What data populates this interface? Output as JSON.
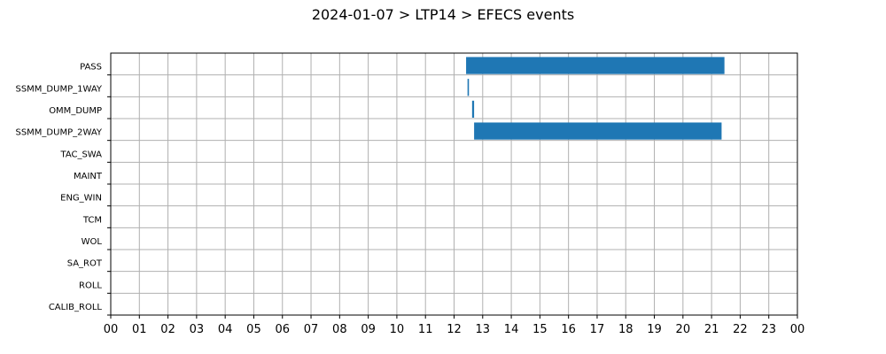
{
  "chart_data": {
    "type": "gantt",
    "title": "2024-01-07 > LTP14 > EFECS events",
    "xlabel": "",
    "ylabel": "",
    "x_unit": "hour of day",
    "xlim": [
      0,
      24
    ],
    "x_tick_labels": [
      "00",
      "01",
      "02",
      "03",
      "04",
      "05",
      "06",
      "07",
      "08",
      "09",
      "10",
      "11",
      "12",
      "13",
      "14",
      "15",
      "16",
      "17",
      "18",
      "19",
      "20",
      "21",
      "22",
      "23",
      "00"
    ],
    "categories": [
      "PASS",
      "SSMM_DUMP_1WAY",
      "OMM_DUMP",
      "SSMM_DUMP_2WAY",
      "TAC_SWA",
      "MAINT",
      "ENG_WIN",
      "TCM",
      "WOL",
      "SA_ROT",
      "ROLL",
      "CALIB_ROLL"
    ],
    "grid": true,
    "bar_color": "#1f77b4",
    "events": [
      {
        "category": "PASS",
        "start": 12.42,
        "end": 21.45
      },
      {
        "category": "SSMM_DUMP_1WAY",
        "start": 12.47,
        "end": 12.52
      },
      {
        "category": "OMM_DUMP",
        "start": 12.63,
        "end": 12.7
      },
      {
        "category": "SSMM_DUMP_2WAY",
        "start": 12.7,
        "end": 21.35
      }
    ]
  }
}
